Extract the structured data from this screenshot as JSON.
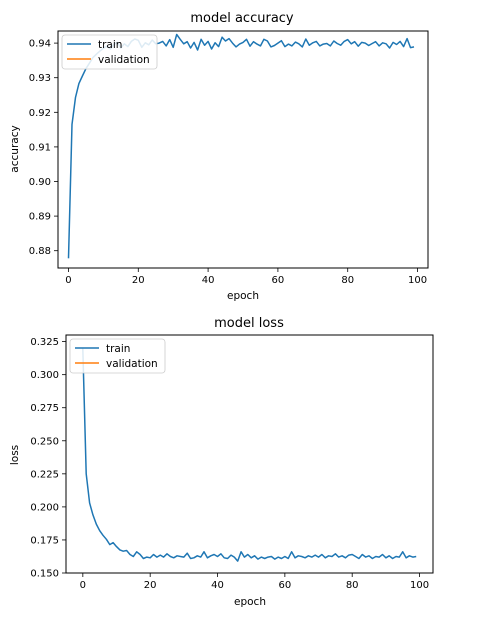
{
  "chart_data": [
    {
      "type": "line",
      "title": "model accuracy",
      "xlabel": "epoch",
      "ylabel": "accuracy",
      "xlim": [
        -3,
        103
      ],
      "ylim": [
        0.875,
        0.9435
      ],
      "xticks": [
        0,
        20,
        40,
        60,
        80,
        100
      ],
      "yticks": [
        0.88,
        0.89,
        0.9,
        0.91,
        0.92,
        0.93,
        0.94
      ],
      "ytick_labels": [
        "0.88",
        "0.89",
        "0.90",
        "0.91",
        "0.92",
        "0.93",
        "0.94"
      ],
      "legend": {
        "placement": "upper-left",
        "entries": [
          "train",
          "validation"
        ]
      },
      "grid": false,
      "series": [
        {
          "name": "train",
          "color": "#1f77b4",
          "x": [
            0,
            1,
            2,
            3,
            4,
            5,
            6,
            7,
            8,
            9,
            10,
            11,
            12,
            13,
            14,
            15,
            16,
            17,
            18,
            19,
            20,
            21,
            22,
            23,
            24,
            25,
            26,
            27,
            28,
            29,
            30,
            31,
            32,
            33,
            34,
            35,
            36,
            37,
            38,
            39,
            40,
            41,
            42,
            43,
            44,
            45,
            46,
            47,
            48,
            49,
            50,
            51,
            52,
            53,
            54,
            55,
            56,
            57,
            58,
            59,
            60,
            61,
            62,
            63,
            64,
            65,
            66,
            67,
            68,
            69,
            70,
            71,
            72,
            73,
            74,
            75,
            76,
            77,
            78,
            79,
            80,
            81,
            82,
            83,
            84,
            85,
            86,
            87,
            88,
            89,
            90,
            91,
            92,
            93,
            94,
            95,
            96,
            97,
            98,
            99
          ],
          "values": [
            0.8778,
            0.9165,
            0.9243,
            0.9283,
            0.9305,
            0.9326,
            0.9342,
            0.9358,
            0.9368,
            0.9377,
            0.9385,
            0.9391,
            0.9383,
            0.9396,
            0.9402,
            0.9386,
            0.9398,
            0.939,
            0.9405,
            0.9412,
            0.9408,
            0.9388,
            0.9401,
            0.9395,
            0.9409,
            0.9398,
            0.94,
            0.9405,
            0.9392,
            0.941,
            0.9388,
            0.9425,
            0.9411,
            0.9398,
            0.9404,
            0.9386,
            0.9402,
            0.938,
            0.9411,
            0.9394,
            0.9405,
            0.9383,
            0.9401,
            0.939,
            0.9417,
            0.9406,
            0.9413,
            0.94,
            0.9389,
            0.9397,
            0.9402,
            0.9411,
            0.9391,
            0.9404,
            0.9397,
            0.9392,
            0.9411,
            0.9406,
            0.9389,
            0.9393,
            0.94,
            0.9407,
            0.939,
            0.9397,
            0.9392,
            0.9403,
            0.9398,
            0.9389,
            0.9412,
            0.9394,
            0.9401,
            0.9405,
            0.9392,
            0.9397,
            0.9399,
            0.9392,
            0.9406,
            0.9399,
            0.9394,
            0.9405,
            0.941,
            0.9398,
            0.9404,
            0.9391,
            0.9402,
            0.94,
            0.9393,
            0.9399,
            0.9404,
            0.9392,
            0.9401,
            0.9398,
            0.9386,
            0.9402,
            0.9396,
            0.9405,
            0.939,
            0.9413,
            0.9387,
            0.9389
          ]
        },
        {
          "name": "validation",
          "color": "#ff7f0e",
          "x": [],
          "values": []
        }
      ]
    },
    {
      "type": "line",
      "title": "model loss",
      "xlabel": "epoch",
      "ylabel": "loss",
      "xlim": [
        -5,
        104
      ],
      "ylim": [
        0.15,
        0.33
      ],
      "xticks": [
        0,
        20,
        40,
        60,
        80,
        100
      ],
      "yticks": [
        0.15,
        0.175,
        0.2,
        0.225,
        0.25,
        0.275,
        0.3,
        0.325
      ],
      "ytick_labels": [
        "0.150",
        "0.175",
        "0.200",
        "0.225",
        "0.250",
        "0.275",
        "0.300",
        "0.325"
      ],
      "legend": {
        "placement": "upper-left",
        "entries": [
          "train",
          "validation"
        ]
      },
      "grid": false,
      "series": [
        {
          "name": "train",
          "color": "#1f77b4",
          "x": [
            0,
            1,
            2,
            3,
            4,
            5,
            6,
            7,
            8,
            9,
            10,
            11,
            12,
            13,
            14,
            15,
            16,
            17,
            18,
            19,
            20,
            21,
            22,
            23,
            24,
            25,
            26,
            27,
            28,
            29,
            30,
            31,
            32,
            33,
            34,
            35,
            36,
            37,
            38,
            39,
            40,
            41,
            42,
            43,
            44,
            45,
            46,
            47,
            48,
            49,
            50,
            51,
            52,
            53,
            54,
            55,
            56,
            57,
            58,
            59,
            60,
            61,
            62,
            63,
            64,
            65,
            66,
            67,
            68,
            69,
            70,
            71,
            72,
            73,
            74,
            75,
            76,
            77,
            78,
            79,
            80,
            81,
            82,
            83,
            84,
            85,
            86,
            87,
            88,
            89,
            90,
            91,
            92,
            93,
            94,
            95,
            96,
            97,
            98,
            99
          ],
          "values": [
            0.32,
            0.225,
            0.203,
            0.194,
            0.187,
            0.182,
            0.1785,
            0.1755,
            0.1715,
            0.173,
            0.17,
            0.1675,
            0.1665,
            0.167,
            0.164,
            0.1625,
            0.166,
            0.164,
            0.161,
            0.162,
            0.1615,
            0.164,
            0.162,
            0.1635,
            0.162,
            0.1645,
            0.1625,
            0.1615,
            0.163,
            0.1625,
            0.162,
            0.165,
            0.161,
            0.1615,
            0.163,
            0.162,
            0.166,
            0.1615,
            0.163,
            0.164,
            0.1625,
            0.1645,
            0.1615,
            0.161,
            0.1635,
            0.162,
            0.159,
            0.166,
            0.162,
            0.164,
            0.1615,
            0.163,
            0.1605,
            0.162,
            0.161,
            0.162,
            0.1625,
            0.1605,
            0.162,
            0.161,
            0.1625,
            0.161,
            0.166,
            0.1615,
            0.163,
            0.1625,
            0.1615,
            0.163,
            0.162,
            0.1635,
            0.162,
            0.164,
            0.1615,
            0.163,
            0.1625,
            0.1645,
            0.162,
            0.163,
            0.1615,
            0.1635,
            0.164,
            0.1625,
            0.161,
            0.164,
            0.162,
            0.163,
            0.161,
            0.1625,
            0.162,
            0.164,
            0.1615,
            0.163,
            0.161,
            0.1625,
            0.162,
            0.166,
            0.1615,
            0.163,
            0.162,
            0.1625
          ]
        },
        {
          "name": "validation",
          "color": "#ff7f0e",
          "x": [],
          "values": []
        }
      ]
    }
  ]
}
